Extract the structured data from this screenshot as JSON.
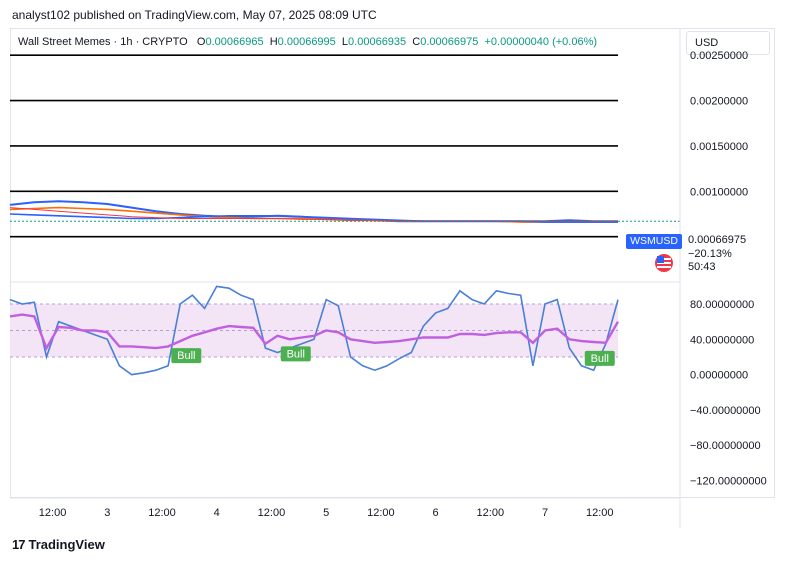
{
  "publisher_line": "analyst102 published on TradingView.com, May 07, 2025 08:09 UTC",
  "legend": {
    "name": "Wall Street Memes · 1h · CRYPTO",
    "o_label": "O",
    "o": "0.00066965",
    "h_label": "H",
    "h": "0.00066995",
    "l_label": "L",
    "l": "0.00066935",
    "c_label": "C",
    "c": "0.00066975",
    "change": "+0.00000040 (+0.06%)"
  },
  "currency_button": "USD",
  "ticker": {
    "symbol": "WSMUSD",
    "price": "0.00066975",
    "change_pct": "−20.13%",
    "countdown": "50:43",
    "flag": "us-flag-icon"
  },
  "brand": "TradingView",
  "colors": {
    "up": "#089981",
    "blue_line": "#2962ff",
    "orange_line": "#ff6d00",
    "red_line": "#f23645",
    "stoch_k": "#4a7fd8",
    "rsi": "#c060e0",
    "bull": "#4caf50",
    "band_fill": "#f3e5f5"
  },
  "chart_data": [
    {
      "type": "line",
      "name": "price-pane",
      "ylim": [
        0.0,
        0.0028
      ],
      "y_ticks": [
        {
          "value": 0.0025,
          "label": "0.00250000"
        },
        {
          "value": 0.002,
          "label": "0.00200000"
        },
        {
          "value": 0.0015,
          "label": "0.00150000"
        },
        {
          "value": 0.001,
          "label": "0.00100000"
        }
      ],
      "horizontal_levels": [
        0.0025,
        0.002,
        0.0015,
        0.001,
        0.0005
      ],
      "x": [
        0,
        4,
        8,
        12,
        16,
        20,
        24,
        28,
        32,
        36,
        40,
        44,
        48,
        52,
        56,
        60,
        64,
        68,
        72,
        76,
        80,
        84,
        88,
        92,
        96,
        100
      ],
      "series": [
        {
          "values": [
            0.00085,
            0.00088,
            0.00089,
            0.00088,
            0.00086,
            0.00082,
            0.00078,
            0.00075,
            0.00073,
            0.00072,
            0.00072,
            0.00073,
            0.00072,
            0.0007,
            0.00069,
            0.00068,
            0.00067,
            0.00067,
            0.00067,
            0.00067,
            0.00067,
            0.00067,
            0.00067,
            0.00068,
            0.00067,
            0.00067
          ]
        },
        {
          "values": [
            0.0008,
            0.00081,
            0.00082,
            0.00081,
            0.0008,
            0.00078,
            0.00076,
            0.00074,
            0.00072,
            0.00071,
            0.0007,
            0.0007,
            0.0007,
            0.00069,
            0.00068,
            0.00068,
            0.00067,
            0.00067,
            0.00067,
            0.00067,
            0.00067,
            0.00066,
            0.00066,
            0.00066,
            0.00066,
            0.00066
          ]
        },
        {
          "values": [
            0.00075,
            0.00074,
            0.00073,
            0.00072,
            0.00071,
            0.0007,
            0.0007,
            0.00071,
            0.00072,
            0.00073,
            0.00073,
            0.00073,
            0.00072,
            0.00071,
            0.0007,
            0.00069,
            0.00068,
            0.00067,
            0.00067,
            0.00067,
            0.00067,
            0.00067,
            0.00066,
            0.00066,
            0.00066,
            0.00066
          ]
        },
        {
          "values": [
            0.00082,
            0.0008,
            0.00078,
            0.00076,
            0.00074,
            0.00072,
            0.00071,
            0.0007,
            0.0007,
            0.0007,
            0.0007,
            0.0007,
            0.00069,
            0.00069,
            0.00068,
            0.00068,
            0.00067,
            0.00067,
            0.00067,
            0.00067,
            0.00067,
            0.00067,
            0.00067,
            0.00067,
            0.00067,
            0.00067
          ]
        }
      ]
    },
    {
      "type": "line",
      "name": "oscillator-pane",
      "ylim": [
        -140,
        105
      ],
      "y_ticks": [
        {
          "value": 80,
          "label": "80.00000000"
        },
        {
          "value": 40,
          "label": "40.00000000"
        },
        {
          "value": 0,
          "label": "0.00000000"
        },
        {
          "value": -40,
          "label": "−40.00000000"
        },
        {
          "value": -80,
          "label": "−80.00000000"
        },
        {
          "value": -120,
          "label": "−120.00000000"
        }
      ],
      "bands": {
        "upper": 80,
        "middle": 50,
        "lower": 20
      },
      "x": [
        0,
        2,
        4,
        6,
        8,
        10,
        12,
        14,
        16,
        18,
        20,
        22,
        24,
        26,
        28,
        30,
        32,
        34,
        36,
        38,
        40,
        42,
        44,
        46,
        48,
        50,
        52,
        54,
        56,
        58,
        60,
        62,
        64,
        66,
        68,
        70,
        72,
        74,
        76,
        78,
        80,
        82,
        84,
        86,
        88,
        90,
        92,
        94,
        96,
        98,
        100
      ],
      "series": [
        {
          "values": [
            85,
            80,
            82,
            20,
            60,
            55,
            50,
            45,
            40,
            10,
            0,
            2,
            5,
            10,
            80,
            90,
            75,
            100,
            98,
            90,
            85,
            30,
            25,
            30,
            35,
            40,
            85,
            78,
            20,
            10,
            5,
            10,
            18,
            25,
            55,
            70,
            75,
            95,
            85,
            80,
            95,
            92,
            90,
            10,
            80,
            85,
            30,
            10,
            5,
            35,
            85
          ]
        },
        {
          "values": [
            66,
            68,
            66,
            30,
            54,
            53,
            50,
            50,
            48,
            32,
            32,
            31,
            30,
            32,
            38,
            44,
            48,
            52,
            55,
            54,
            53,
            35,
            44,
            40,
            42,
            44,
            50,
            48,
            40,
            38,
            36,
            37,
            38,
            40,
            42,
            42,
            42,
            46,
            46,
            45,
            47,
            48,
            48,
            36,
            50,
            52,
            40,
            38,
            37,
            36,
            60
          ]
        }
      ],
      "bull_labels": [
        {
          "text": "Bull",
          "x": 29,
          "y": 22
        },
        {
          "text": "Bull",
          "x": 47,
          "y": 24
        },
        {
          "text": "Bull",
          "x": 97,
          "y": 19
        }
      ]
    }
  ],
  "x_axis_labels": [
    {
      "label": "12:00",
      "x": 7
    },
    {
      "label": "3",
      "x": 16
    },
    {
      "label": "12:00",
      "x": 25
    },
    {
      "label": "4",
      "x": 34
    },
    {
      "label": "12:00",
      "x": 43
    },
    {
      "label": "5",
      "x": 52
    },
    {
      "label": "12:00",
      "x": 61
    },
    {
      "label": "6",
      "x": 70
    },
    {
      "label": "12:00",
      "x": 79
    },
    {
      "label": "7",
      "x": 88
    },
    {
      "label": "12:00",
      "x": 97
    }
  ]
}
